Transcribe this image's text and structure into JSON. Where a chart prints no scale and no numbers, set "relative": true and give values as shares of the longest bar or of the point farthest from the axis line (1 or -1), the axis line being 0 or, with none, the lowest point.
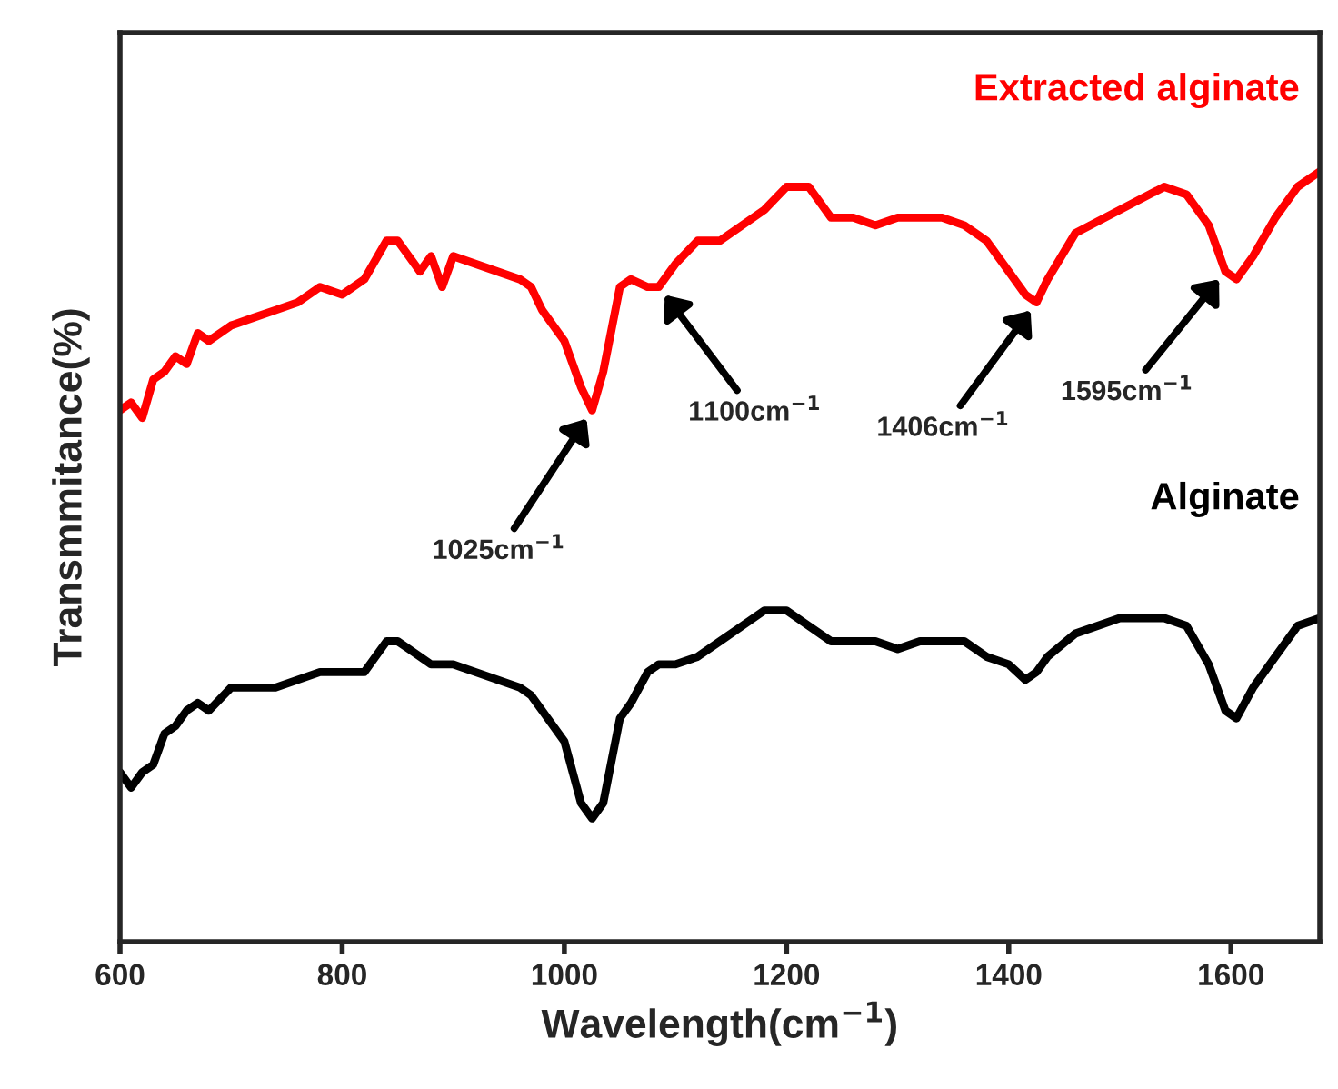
{
  "chart_data": {
    "type": "line",
    "relative": true,
    "xlabel": "Wavelength(cm$^{−1}$)",
    "ylabel": "Transmmitance(%)",
    "xlim": [
      600,
      1680
    ],
    "xticks": [
      600,
      800,
      1000,
      1200,
      1400,
      1600
    ],
    "grid": false,
    "legend": false,
    "marker": "none",
    "line_style": "solid",
    "tick_labels": "x",
    "x": [
      600,
      610,
      620,
      630,
      640,
      650,
      660,
      670,
      680,
      700,
      720,
      740,
      760,
      780,
      800,
      820,
      840,
      850,
      860,
      870,
      880,
      890,
      900,
      920,
      940,
      960,
      970,
      980,
      1000,
      1015,
      1025,
      1035,
      1050,
      1060,
      1075,
      1085,
      1100,
      1120,
      1140,
      1160,
      1180,
      1200,
      1220,
      1240,
      1260,
      1280,
      1300,
      1320,
      1340,
      1360,
      1380,
      1400,
      1415,
      1425,
      1435,
      1460,
      1500,
      1540,
      1560,
      1580,
      1595,
      1605,
      1620,
      1640,
      1660,
      1680
    ],
    "series": [
      {
        "name": "Extracted alginate",
        "color": "#ff0000",
        "values": [
          0.69,
          0.7,
          0.68,
          0.73,
          0.74,
          0.76,
          0.75,
          0.79,
          0.78,
          0.8,
          0.81,
          0.82,
          0.83,
          0.85,
          0.84,
          0.86,
          0.91,
          0.91,
          0.89,
          0.87,
          0.89,
          0.85,
          0.89,
          0.88,
          0.87,
          0.86,
          0.85,
          0.82,
          0.78,
          0.72,
          0.69,
          0.74,
          0.85,
          0.86,
          0.85,
          0.85,
          0.88,
          0.91,
          0.91,
          0.93,
          0.95,
          0.98,
          0.98,
          0.94,
          0.94,
          0.93,
          0.94,
          0.94,
          0.94,
          0.93,
          0.91,
          0.87,
          0.84,
          0.83,
          0.86,
          0.92,
          0.95,
          0.98,
          0.97,
          0.93,
          0.87,
          0.86,
          0.89,
          0.94,
          0.98,
          1.0
        ]
      },
      {
        "name": "Alginate",
        "color": "#000000",
        "values": [
          0.22,
          0.2,
          0.22,
          0.23,
          0.27,
          0.28,
          0.3,
          0.31,
          0.3,
          0.33,
          0.33,
          0.33,
          0.34,
          0.35,
          0.35,
          0.35,
          0.39,
          0.39,
          0.38,
          0.37,
          0.36,
          0.36,
          0.36,
          0.35,
          0.34,
          0.33,
          0.32,
          0.3,
          0.26,
          0.18,
          0.16,
          0.18,
          0.29,
          0.31,
          0.35,
          0.36,
          0.36,
          0.37,
          0.39,
          0.41,
          0.43,
          0.43,
          0.41,
          0.39,
          0.39,
          0.39,
          0.38,
          0.39,
          0.39,
          0.39,
          0.37,
          0.36,
          0.34,
          0.35,
          0.37,
          0.4,
          0.42,
          0.42,
          0.41,
          0.36,
          0.3,
          0.29,
          0.33,
          0.37,
          0.41,
          0.42
        ]
      }
    ],
    "annotations": [
      {
        "text": "1025cm$^{−1}$",
        "x": 1025,
        "y": 0.69
      },
      {
        "text": "1100cm$^{−1}$",
        "x": 1085,
        "y": 0.85
      },
      {
        "text": "1406cm$^{−1}$",
        "x": 1425,
        "y": 0.83
      },
      {
        "text": "1595cm$^{−1}$",
        "x": 1595,
        "y": 0.87
      }
    ]
  }
}
